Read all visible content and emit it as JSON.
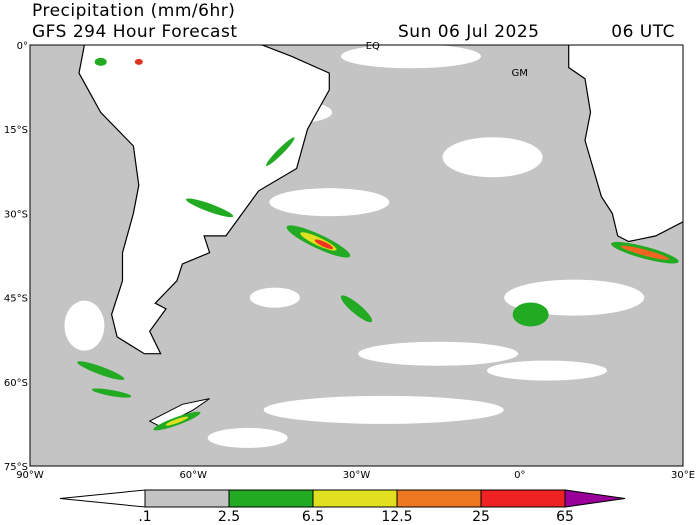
{
  "header": {
    "title": "Precipitation (mm/6hr)",
    "subtitle": "GFS 294 Hour Forecast",
    "date": "Sun 06 Jul 2025",
    "time": "06 UTC"
  },
  "map": {
    "lat_labels": [
      "0°",
      "15°S",
      "30°S",
      "45°S",
      "60°S",
      "75°S"
    ],
    "lon_labels": [
      "90°W",
      "60°W",
      "30°W",
      "0°",
      "30°E"
    ],
    "annotations": [
      "EQ",
      "GM"
    ]
  },
  "colorbar": {
    "labels": [
      ".1",
      "2.5",
      "6.5",
      "12.5",
      "25",
      "65"
    ]
  }
}
